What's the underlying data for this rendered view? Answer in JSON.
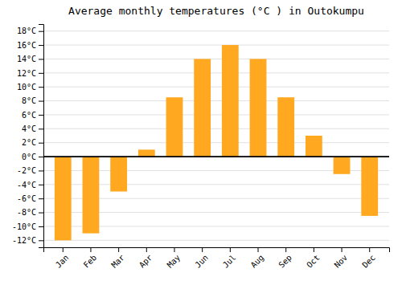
{
  "chart_data": {
    "type": "bar",
    "title": "Average monthly temperatures (°C ) in Outokumpu",
    "categories": [
      "Jan",
      "Feb",
      "Mar",
      "Apr",
      "May",
      "Jun",
      "Jul",
      "Aug",
      "Sep",
      "Oct",
      "Nov",
      "Dec"
    ],
    "values": [
      -12,
      -11,
      -5,
      1,
      8.5,
      14,
      16,
      14,
      8.5,
      3,
      -2.5,
      -8.5
    ],
    "color": "#FFA820",
    "ylim": [
      -13,
      19
    ],
    "yticks": [
      {
        "value": -12,
        "label": "-12°C"
      },
      {
        "value": -10,
        "label": "-10°C"
      },
      {
        "value": -8,
        "label": "-8°C"
      },
      {
        "value": -6,
        "label": "-6°C"
      },
      {
        "value": -4,
        "label": "-4°C"
      },
      {
        "value": -2,
        "label": "-2°C"
      },
      {
        "value": 0,
        "label": "0°C"
      },
      {
        "value": 2,
        "label": "2°C"
      },
      {
        "value": 4,
        "label": "4°C"
      },
      {
        "value": 6,
        "label": "6°C"
      },
      {
        "value": 8,
        "label": "8°C"
      },
      {
        "value": 10,
        "label": "10°C"
      },
      {
        "value": 12,
        "label": "12°C"
      },
      {
        "value": 14,
        "label": "14°C"
      },
      {
        "value": 16,
        "label": "16°C"
      },
      {
        "value": 18,
        "label": "18°C"
      }
    ],
    "grid": true
  }
}
